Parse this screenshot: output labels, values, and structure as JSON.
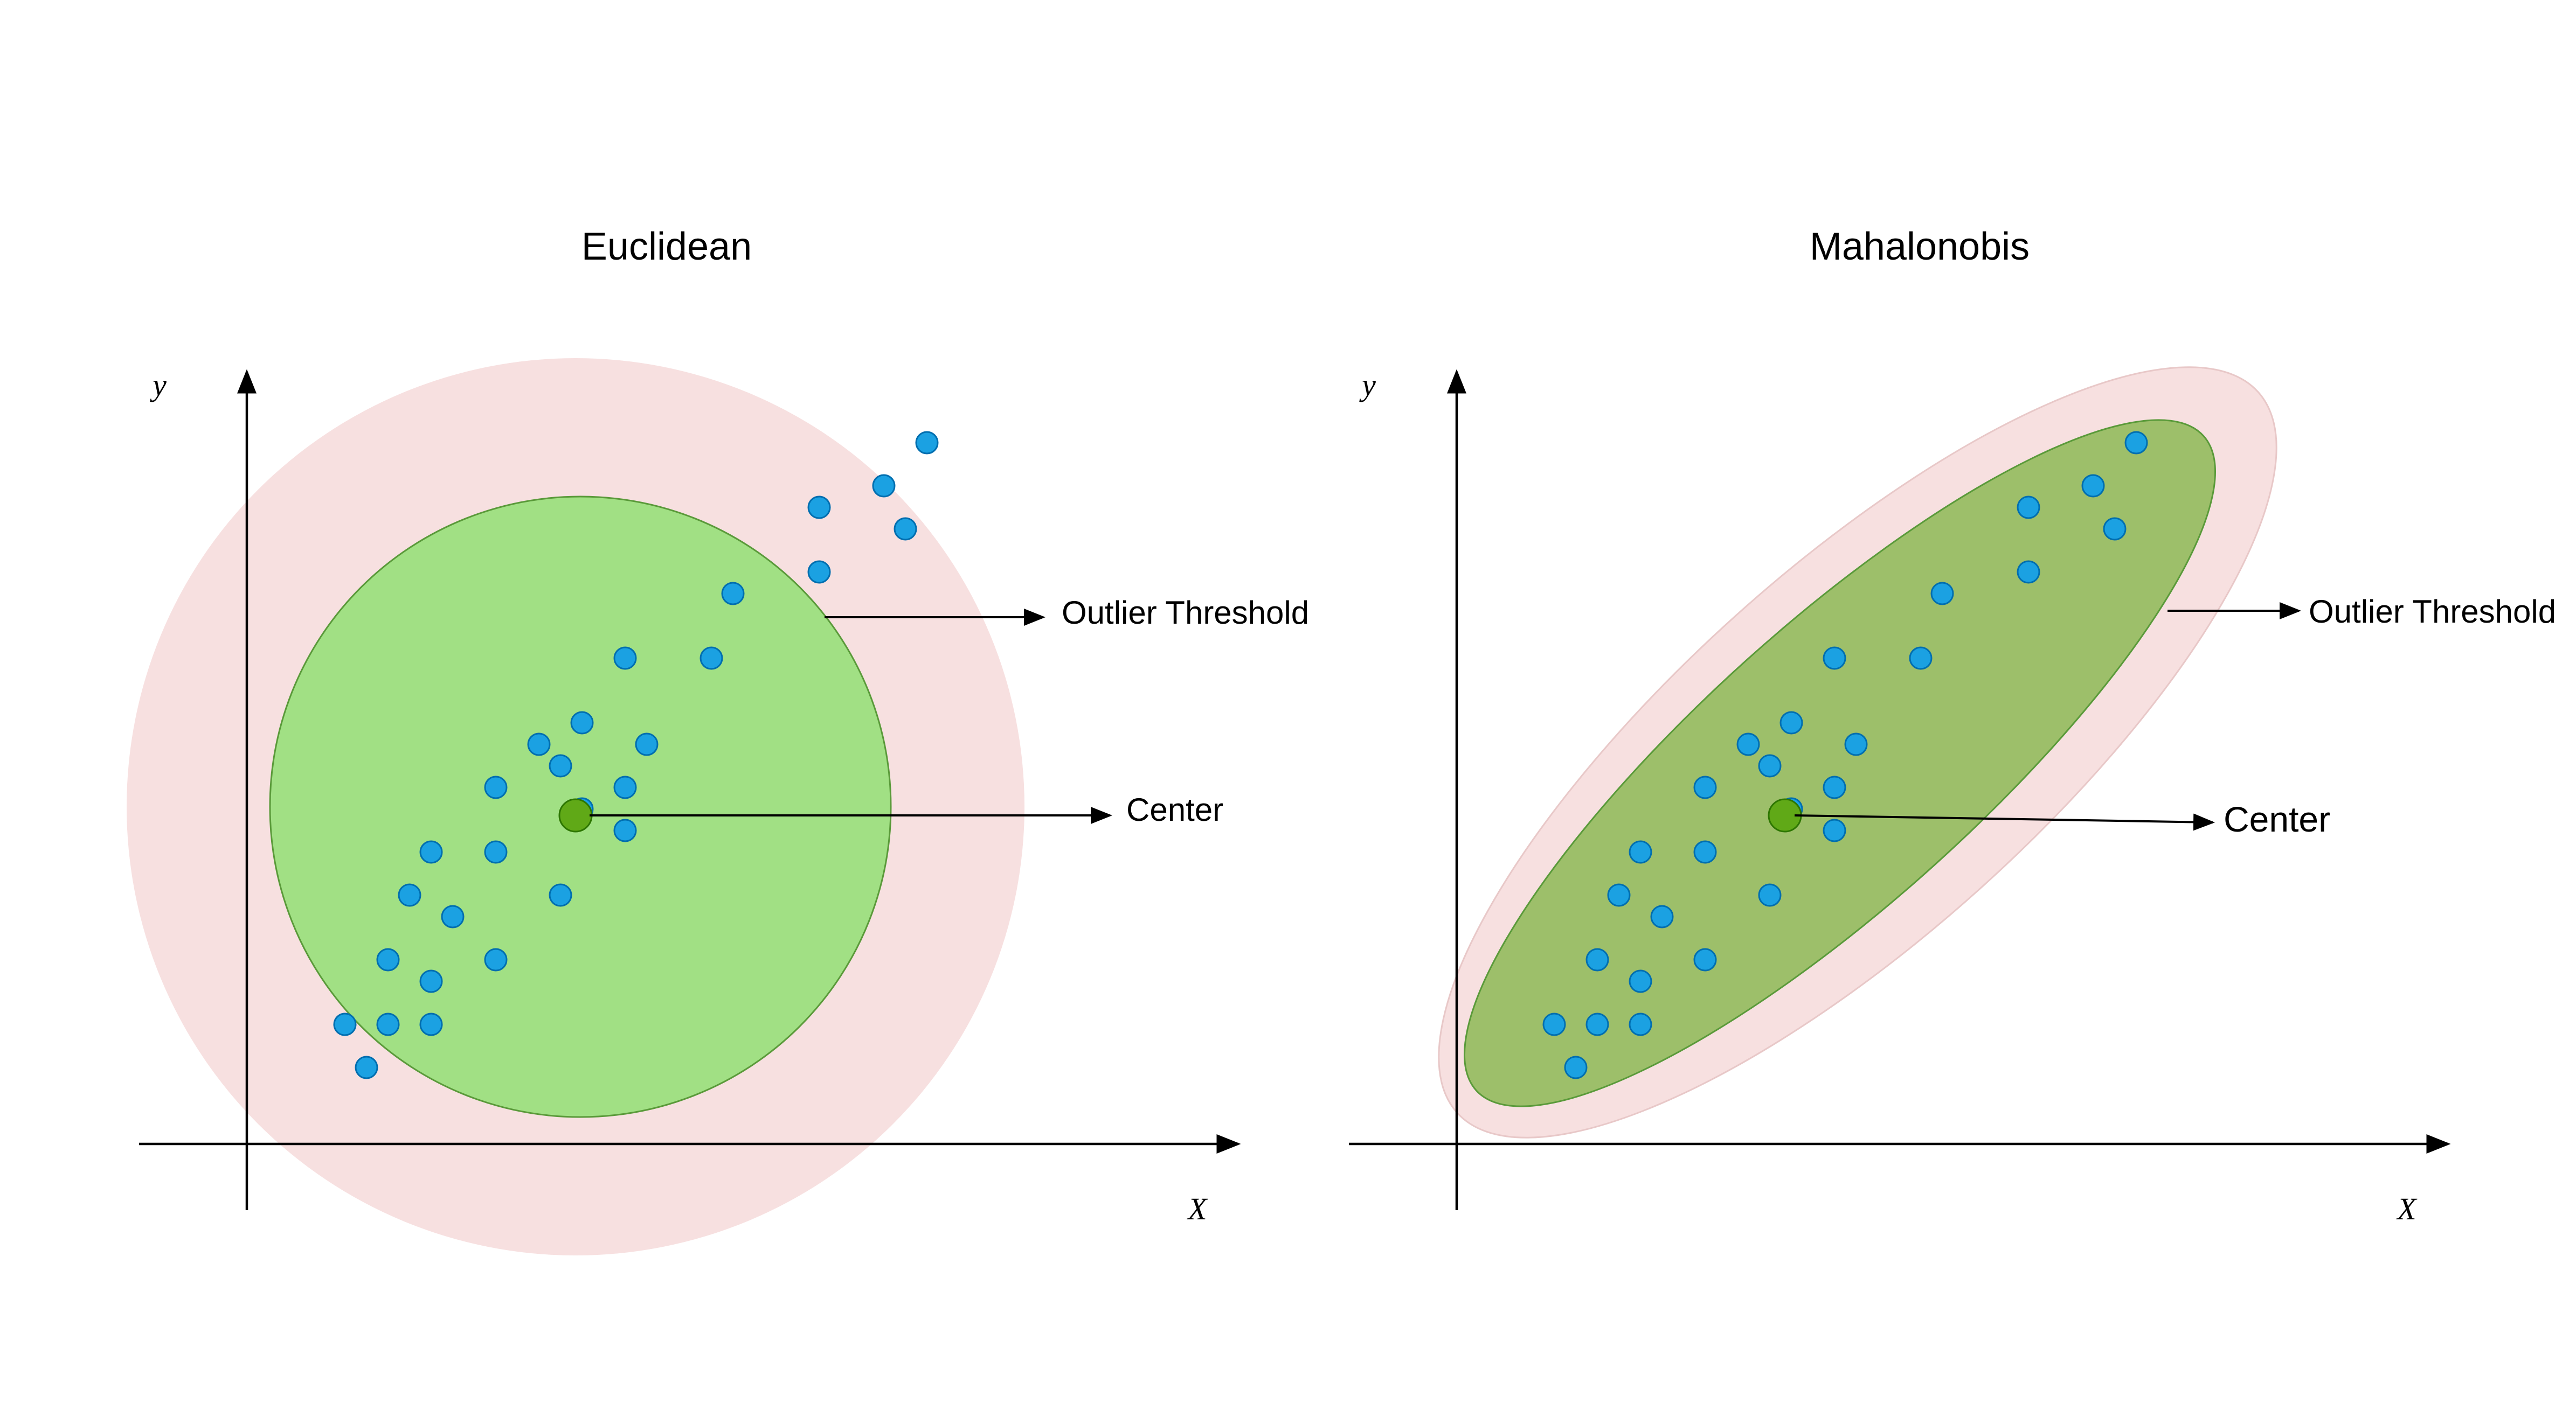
{
  "panels": {
    "euclidean": {
      "title": "Euclidean",
      "x_axis_label": "X",
      "y_axis_label": "y",
      "outlier_label": "Outlier Threshold",
      "center_label": "Center"
    },
    "mahalanobis": {
      "title": "Mahalonobis",
      "x_axis_label": "X",
      "y_axis_label": "y",
      "outlier_label": "Outlier Threshold",
      "center_label": "Center"
    }
  },
  "colors": {
    "outer_region": "#f7e0e0",
    "euclid_inner": "#a1e084",
    "mahal_inner": "#9dbf6a",
    "inner_stroke": "#5a9a3a",
    "point_fill": "#1ba1e2",
    "point_stroke": "#006eaf",
    "center_fill": "#60a917",
    "center_stroke": "#2d7600",
    "axis": "#000000"
  }
}
